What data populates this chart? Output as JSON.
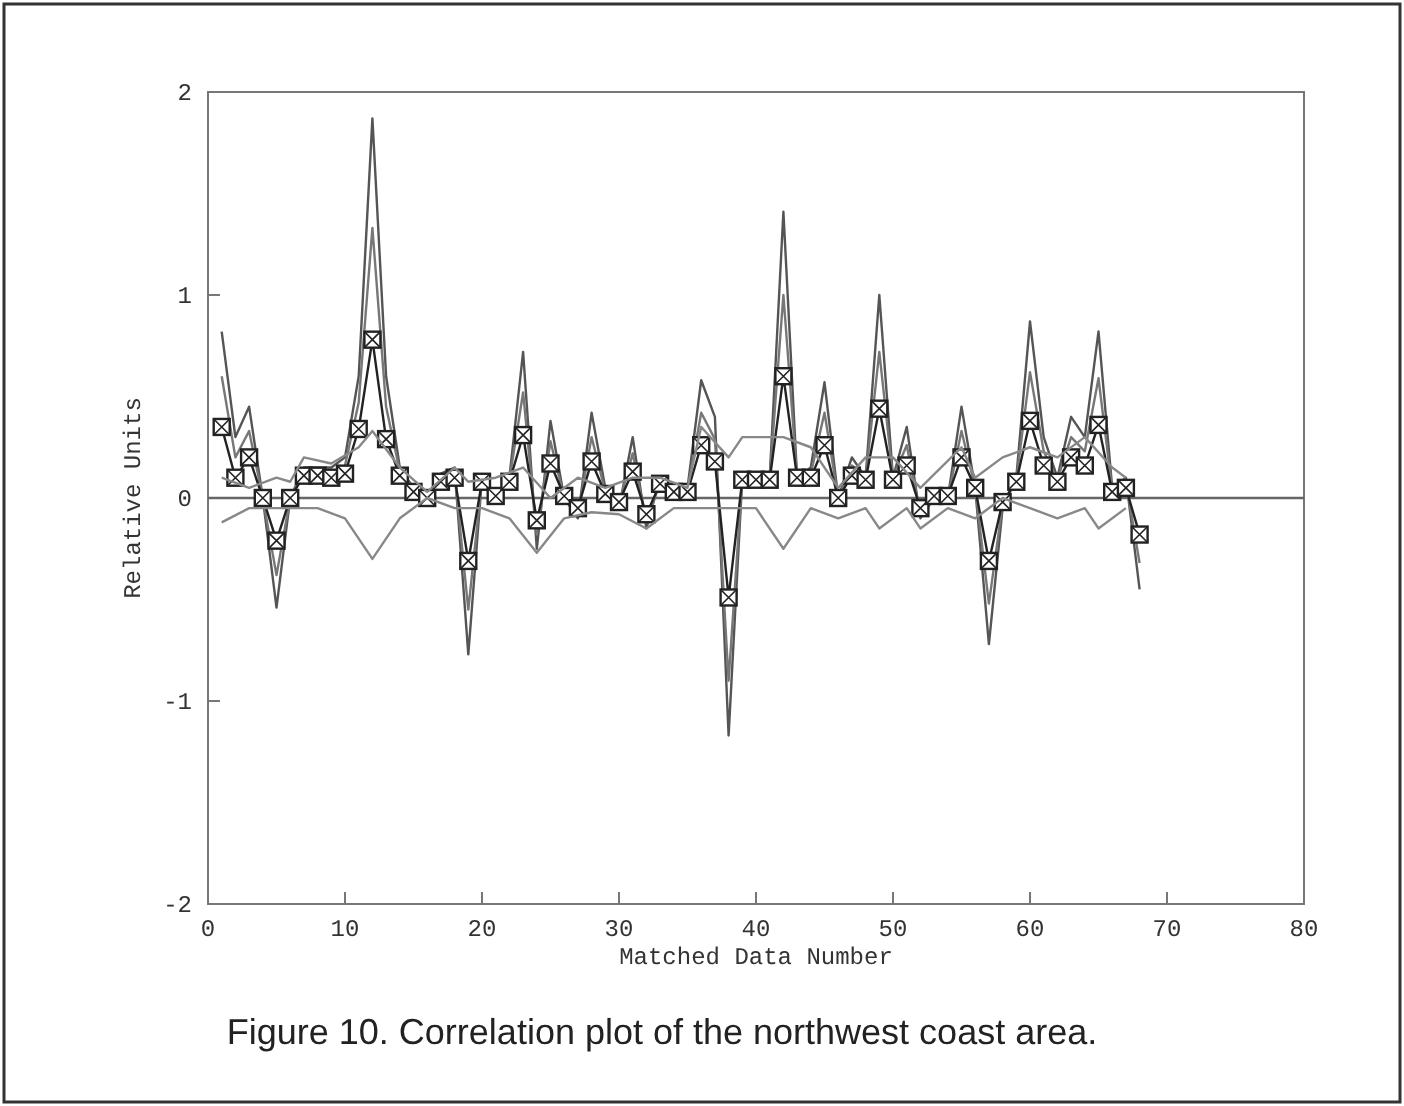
{
  "chart_data": {
    "type": "line",
    "xlabel": "Matched Data Number",
    "ylabel": "Relative Units",
    "annotations": [
      "Figure 10. Correlation plot of the northwest coast area."
    ],
    "xlim": [
      0,
      80
    ],
    "xticks": [
      0,
      10,
      20,
      30,
      40,
      50,
      60,
      70,
      80
    ],
    "ylim": [
      -2,
      2
    ],
    "yticks": [
      -2,
      -1,
      0,
      1,
      2
    ],
    "grid": false,
    "ref_lines": [
      {
        "axis": "y",
        "value": 0,
        "color": "#666666"
      }
    ],
    "series": [
      {
        "color": "#555555",
        "marker": "none",
        "x": [
          1,
          2,
          3,
          4,
          5,
          6,
          7,
          8,
          9,
          10,
          11,
          12,
          13,
          14,
          15,
          16,
          17,
          18,
          19,
          20,
          21,
          22,
          23,
          24,
          25,
          26,
          27,
          28,
          29,
          30,
          31,
          32,
          33,
          34,
          35,
          36,
          37,
          38,
          39,
          40,
          41,
          42,
          43,
          44,
          45,
          46,
          47,
          48,
          49,
          50,
          51,
          52,
          53,
          54,
          55,
          56,
          57,
          58,
          59,
          60,
          61,
          62,
          63,
          64,
          65,
          66,
          67,
          68
        ],
        "values": [
          0.82,
          0.3,
          0.45,
          0,
          -0.54,
          0,
          0.15,
          0.15,
          0.15,
          0.2,
          0.6,
          1.87,
          0.6,
          0.15,
          0.05,
          0,
          0.12,
          0.15,
          -0.77,
          0.1,
          0,
          0.1,
          0.72,
          -0.25,
          0.38,
          0,
          -0.1,
          0.42,
          0.05,
          -0.05,
          0.3,
          -0.15,
          0.1,
          0.05,
          0.05,
          0.58,
          0.4,
          -1.17,
          0.1,
          0.1,
          0.1,
          1.41,
          0.1,
          0.15,
          0.57,
          0,
          0.2,
          0.1,
          1.0,
          0.1,
          0.35,
          -0.1,
          0,
          0,
          0.45,
          0.05,
          -0.72,
          -0.05,
          0.1,
          0.87,
          0.3,
          0.1,
          0.4,
          0.3,
          0.82,
          0.05,
          0.1,
          -0.45
        ]
      },
      {
        "color": "#777777",
        "marker": "none",
        "x": [
          1,
          2,
          3,
          4,
          5,
          6,
          7,
          8,
          9,
          10,
          11,
          12,
          13,
          14,
          15,
          16,
          17,
          18,
          19,
          20,
          21,
          22,
          23,
          24,
          25,
          26,
          27,
          28,
          29,
          30,
          31,
          32,
          33,
          34,
          35,
          36,
          37,
          38,
          39,
          40,
          41,
          42,
          43,
          44,
          45,
          46,
          47,
          48,
          49,
          50,
          51,
          52,
          53,
          54,
          55,
          56,
          57,
          58,
          59,
          60,
          61,
          62,
          63,
          64,
          65,
          66,
          67,
          68
        ],
        "values": [
          0.6,
          0.2,
          0.33,
          0,
          -0.38,
          0,
          0.13,
          0.13,
          0.12,
          0.16,
          0.47,
          1.33,
          0.45,
          0.13,
          0.04,
          0,
          0.1,
          0.12,
          -0.55,
          0.09,
          0,
          0.09,
          0.52,
          -0.18,
          0.28,
          0,
          -0.08,
          0.3,
          0.03,
          -0.03,
          0.22,
          -0.12,
          0.08,
          0.04,
          0.04,
          0.42,
          0.29,
          -0.9,
          0.1,
          0.1,
          0.1,
          1.0,
          0.1,
          0.12,
          0.42,
          0,
          0.16,
          0.1,
          0.72,
          0.1,
          0.26,
          -0.08,
          0,
          0,
          0.33,
          0.05,
          -0.52,
          -0.03,
          0.09,
          0.62,
          0.23,
          0.09,
          0.3,
          0.23,
          0.59,
          0.04,
          0.08,
          -0.32
        ]
      },
      {
        "color": "#222222",
        "marker": "square",
        "x": [
          1,
          2,
          3,
          4,
          5,
          6,
          7,
          8,
          9,
          10,
          11,
          12,
          13,
          14,
          15,
          16,
          17,
          18,
          19,
          20,
          21,
          22,
          23,
          24,
          25,
          26,
          27,
          28,
          29,
          30,
          31,
          32,
          33,
          34,
          35,
          36,
          37,
          38,
          39,
          40,
          41,
          42,
          43,
          44,
          45,
          46,
          47,
          48,
          49,
          50,
          51,
          52,
          53,
          54,
          55,
          56,
          57,
          58,
          59,
          60,
          61,
          62,
          63,
          64,
          65,
          66,
          67,
          68
        ],
        "values": [
          0.35,
          0.1,
          0.2,
          0,
          -0.21,
          0,
          0.11,
          0.11,
          0.1,
          0.12,
          0.34,
          0.78,
          0.29,
          0.11,
          0.03,
          0,
          0.08,
          0.1,
          -0.31,
          0.08,
          0.01,
          0.08,
          0.31,
          -0.11,
          0.17,
          0.01,
          -0.05,
          0.18,
          0.02,
          -0.02,
          0.13,
          -0.08,
          0.07,
          0.03,
          0.03,
          0.26,
          0.18,
          -0.49,
          0.09,
          0.09,
          0.09,
          0.6,
          0.1,
          0.1,
          0.26,
          0,
          0.11,
          0.09,
          0.44,
          0.09,
          0.16,
          -0.05,
          0.01,
          0.01,
          0.2,
          0.05,
          -0.31,
          -0.02,
          0.08,
          0.38,
          0.16,
          0.08,
          0.2,
          0.16,
          0.36,
          0.03,
          0.05,
          -0.18
        ]
      },
      {
        "color": "#888888",
        "marker": "none",
        "x": [
          1,
          3,
          5,
          6,
          7,
          9,
          11,
          12,
          14,
          16,
          18,
          19,
          21,
          23,
          25,
          27,
          29,
          31,
          33,
          35,
          36,
          38,
          39,
          42,
          44,
          46,
          48,
          50,
          52,
          55,
          56,
          58,
          60,
          62,
          64,
          66,
          67
        ],
        "values": [
          0.1,
          0.05,
          0.1,
          0.08,
          0.2,
          0.17,
          0.25,
          0.33,
          0.15,
          0.03,
          0.15,
          0.08,
          0.1,
          0.15,
          0,
          0.1,
          0.05,
          0.1,
          0.1,
          0.05,
          0.35,
          0.2,
          0.3,
          0.3,
          0.25,
          0.05,
          0.2,
          0.2,
          0.05,
          0.25,
          0.1,
          0.2,
          0.25,
          0.2,
          0.3,
          0.15,
          0.1
        ]
      },
      {
        "color": "#888888",
        "marker": "none",
        "x": [
          1,
          3,
          5,
          8,
          10,
          12,
          14,
          16,
          18,
          20,
          22,
          24,
          26,
          28,
          30,
          32,
          34,
          36,
          38,
          40,
          42,
          44,
          46,
          48,
          49,
          51,
          52,
          54,
          56,
          58,
          60,
          62,
          64,
          65,
          67
        ],
        "values": [
          -0.12,
          -0.05,
          -0.05,
          -0.05,
          -0.1,
          -0.3,
          -0.1,
          0,
          -0.05,
          -0.05,
          -0.1,
          -0.27,
          -0.1,
          -0.07,
          -0.08,
          -0.15,
          -0.05,
          -0.05,
          -0.05,
          -0.05,
          -0.25,
          -0.05,
          -0.1,
          -0.05,
          -0.15,
          -0.05,
          -0.15,
          -0.05,
          -0.1,
          0,
          -0.05,
          -0.1,
          -0.05,
          -0.15,
          -0.05
        ]
      }
    ]
  }
}
